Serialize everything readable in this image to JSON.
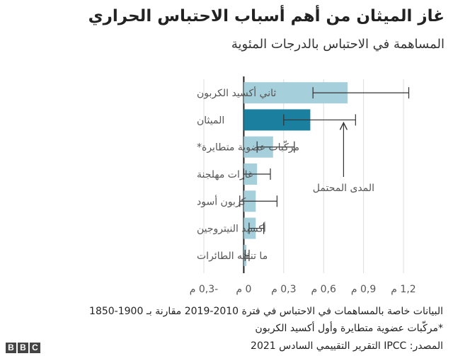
{
  "chart_data": {
    "type": "bar",
    "orientation": "horizontal",
    "title": "غاز الميثان من أهم أسباب الاحتباس الحراري",
    "subtitle": "المساهمة في الاحتباس بالدرجات المئوية",
    "categories": [
      "ثاني أكسيد الكربون",
      "الميثان",
      "مركّبات عضوية متطايرة*",
      "غازات مهلجنة",
      "كربون أسود",
      "أكسيد النيتروجين",
      "ما تنفثه الطائرات"
    ],
    "values": [
      0.78,
      0.5,
      0.22,
      0.1,
      0.09,
      0.09,
      0.02
    ],
    "error_low": [
      0.52,
      0.3,
      0.1,
      0.0,
      -0.03,
      0.04,
      0.01
    ],
    "error_high": [
      1.24,
      0.84,
      0.38,
      0.2,
      0.25,
      0.15,
      0.04
    ],
    "highlight_index": 1,
    "xlim": [
      -0.3,
      1.2
    ],
    "ticks": [
      -0.3,
      0,
      0.3,
      0.6,
      0.9,
      1.2
    ],
    "tick_labels": [
      "-0,3 م",
      "0 م",
      "0,3 م",
      "0,6 م",
      "0,9 م",
      "1,2 م"
    ],
    "annotation": "المدى المحتمل",
    "grid": true,
    "colors": {
      "bar": "#a6cfdc",
      "highlight": "#1b7fa0",
      "error": "#333333",
      "grid": "#dddddd",
      "axis": "#222222"
    }
  },
  "footnotes": [
    "البيانات خاصة بالمساهمات في الاحتباس في فترة 2010-2019 مقارنة بـ 1900-1850",
    "*مركّبات عضوية متطايرة وأول أكسيد الكربون"
  ],
  "source": "المصدر: IPCC التقرير التقييمي السادس 2021",
  "logo": "BBC"
}
